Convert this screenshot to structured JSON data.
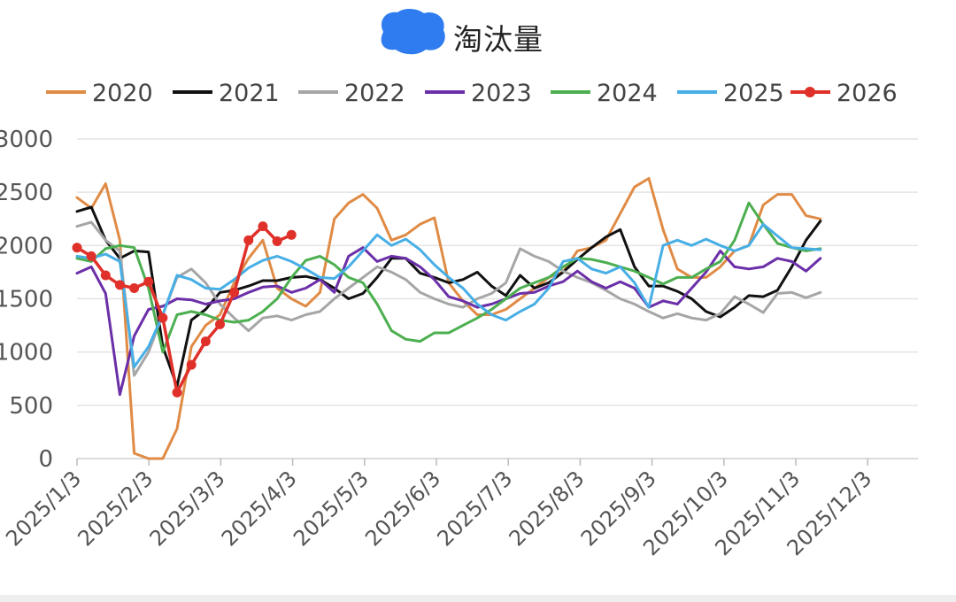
{
  "title": "淘汰量",
  "colors": {
    "2020": "#E08B45",
    "2021": "#111111",
    "2022": "#A6A6A6",
    "2023": "#6B2FA8",
    "2024": "#4CAF50",
    "2025": "#47AEE6",
    "2026": "#E0302A",
    "grid": "#E4E4E4",
    "redaction": "#2F7CF0"
  },
  "chart_data": {
    "type": "line",
    "title": "淘汰量",
    "xlabel": "",
    "ylabel": "",
    "ylim": [
      0,
      3000
    ],
    "yticks": [
      0,
      500,
      1000,
      1500,
      2000,
      2500,
      3000
    ],
    "xtick_labels": [
      "2025/1/3",
      "2025/2/3",
      "2025/3/3",
      "2025/4/3",
      "2025/5/3",
      "2025/6/3",
      "2025/7/3",
      "2025/8/3",
      "2025/9/3",
      "2025/10/3",
      "2025/11/3",
      "2025/12/3"
    ],
    "grid": true,
    "legend_position": "top",
    "x_weeks": "weekly points starting 2025/1/3",
    "series": [
      {
        "name": "2020",
        "values": [
          2450,
          2350,
          2580,
          2050,
          50,
          0,
          0,
          280,
          1050,
          1250,
          1350,
          1650,
          1880,
          2050,
          1600,
          1500,
          1430,
          1560,
          2250,
          2400,
          2480,
          2350,
          2050,
          2100,
          2200,
          2260,
          1650,
          1480,
          1350,
          1350,
          1400,
          1500,
          1600,
          1700,
          1750,
          1950,
          1980,
          2050,
          2300,
          2550,
          2630,
          2150,
          1780,
          1700,
          1700,
          1800,
          1950,
          2000,
          2380,
          2480,
          2480,
          2280,
          2250
        ]
      },
      {
        "name": "2021",
        "values": [
          2320,
          2360,
          2050,
          1880,
          1950,
          1940,
          1050,
          680,
          1300,
          1400,
          1560,
          1580,
          1620,
          1670,
          1670,
          1700,
          1710,
          1680,
          1600,
          1500,
          1550,
          1700,
          1880,
          1880,
          1740,
          1700,
          1650,
          1680,
          1750,
          1620,
          1530,
          1720,
          1600,
          1650,
          1750,
          1870,
          1980,
          2080,
          2150,
          1800,
          1620,
          1620,
          1570,
          1500,
          1380,
          1330,
          1420,
          1530,
          1520,
          1580,
          1800,
          2050,
          2230
        ]
      },
      {
        "name": "2022",
        "values": [
          2180,
          2220,
          2050,
          1950,
          780,
          1000,
          1350,
          1700,
          1780,
          1650,
          1450,
          1320,
          1200,
          1320,
          1340,
          1300,
          1350,
          1380,
          1500,
          1600,
          1700,
          1800,
          1750,
          1680,
          1560,
          1500,
          1450,
          1420,
          1500,
          1550,
          1650,
          1970,
          1900,
          1850,
          1760,
          1700,
          1650,
          1580,
          1500,
          1450,
          1380,
          1320,
          1360,
          1320,
          1300,
          1360,
          1520,
          1450,
          1370,
          1550,
          1560,
          1510,
          1560
        ]
      },
      {
        "name": "2023",
        "values": [
          1740,
          1800,
          1550,
          600,
          1150,
          1400,
          1430,
          1500,
          1490,
          1450,
          1480,
          1500,
          1560,
          1610,
          1620,
          1560,
          1600,
          1680,
          1560,
          1900,
          1980,
          1850,
          1900,
          1880,
          1800,
          1680,
          1520,
          1480,
          1420,
          1450,
          1500,
          1550,
          1560,
          1620,
          1660,
          1760,
          1660,
          1600,
          1660,
          1600,
          1420,
          1480,
          1450,
          1600,
          1750,
          1950,
          1800,
          1780,
          1800,
          1880,
          1850,
          1760,
          1880
        ]
      },
      {
        "name": "2024",
        "values": [
          1880,
          1850,
          1970,
          2000,
          1980,
          1600,
          1000,
          1350,
          1380,
          1350,
          1300,
          1280,
          1300,
          1380,
          1500,
          1700,
          1860,
          1900,
          1820,
          1700,
          1650,
          1450,
          1200,
          1120,
          1100,
          1180,
          1180,
          1250,
          1320,
          1400,
          1500,
          1600,
          1650,
          1700,
          1800,
          1880,
          1870,
          1840,
          1800,
          1760,
          1700,
          1640,
          1700,
          1700,
          1780,
          1850,
          2050,
          2400,
          2200,
          2020,
          1980,
          1950,
          1970
        ]
      },
      {
        "name": "2025",
        "values": [
          1900,
          1880,
          1920,
          1850,
          860,
          1050,
          1350,
          1720,
          1680,
          1600,
          1590,
          1680,
          1790,
          1860,
          1900,
          1850,
          1780,
          1700,
          1690,
          1800,
          1950,
          2100,
          2000,
          2060,
          1960,
          1820,
          1700,
          1600,
          1450,
          1350,
          1300,
          1380,
          1450,
          1600,
          1850,
          1880,
          1780,
          1740,
          1800,
          1650,
          1420,
          2000,
          2050,
          2000,
          2060,
          2000,
          1950,
          2000,
          2200,
          2090,
          1980,
          1970,
          1960
        ]
      },
      {
        "name": "2026",
        "values": [
          1980,
          1900,
          1720,
          1630,
          1600,
          1660,
          1320,
          620,
          880,
          1100,
          1260,
          1560,
          2050,
          2180,
          2040,
          2100
        ]
      }
    ]
  }
}
